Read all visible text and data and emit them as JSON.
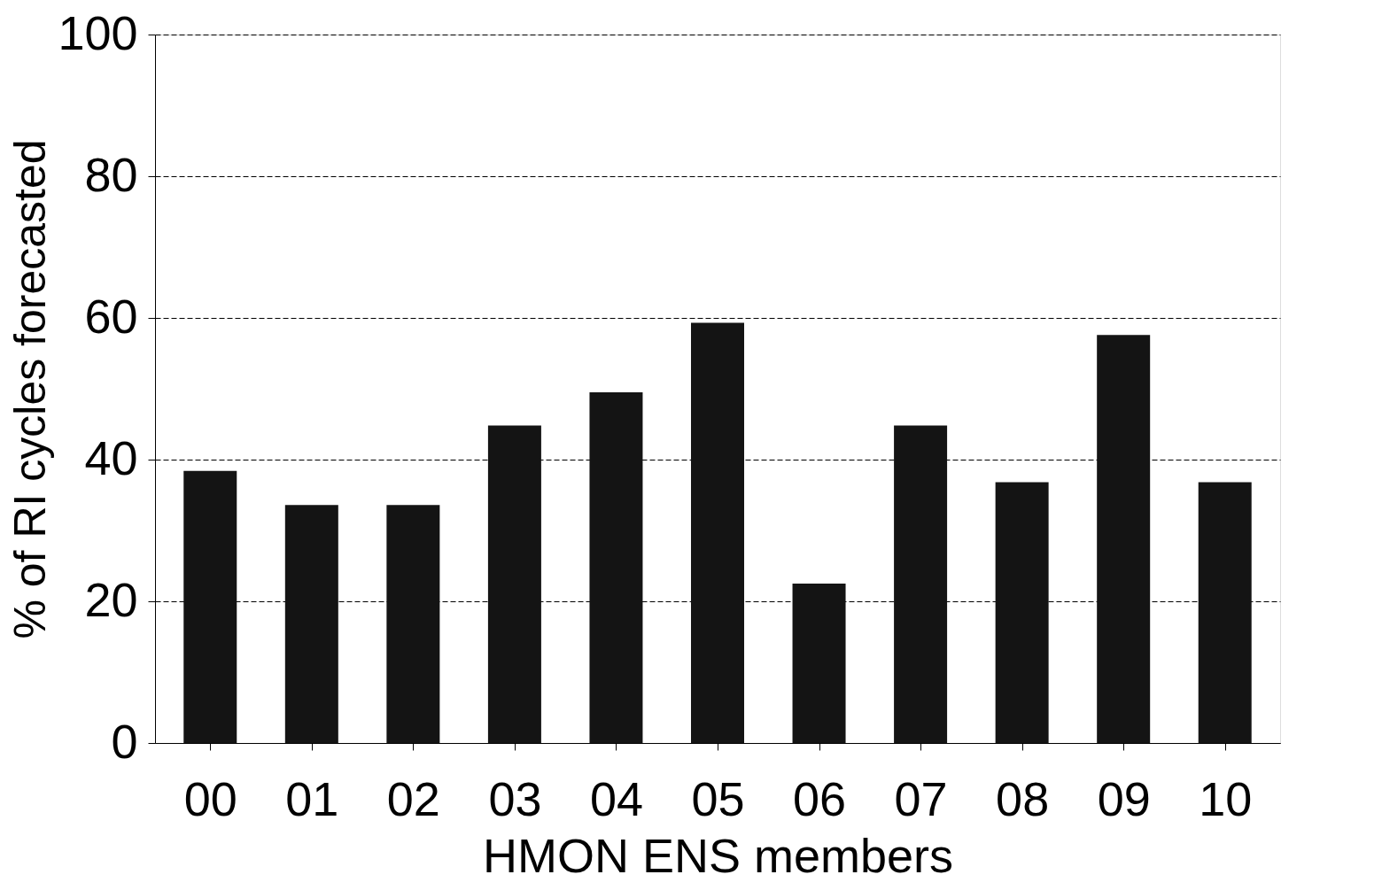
{
  "chart_data": {
    "type": "bar",
    "xlabel": "HMON ENS members",
    "ylabel": "% of RI cycles forecasted",
    "categories": [
      "00",
      "01",
      "02",
      "03",
      "04",
      "05",
      "06",
      "07",
      "08",
      "09",
      "10"
    ],
    "values": [
      38.4,
      33.6,
      33.6,
      44.8,
      49.5,
      59.3,
      22.5,
      44.8,
      36.8,
      57.6,
      36.8
    ],
    "color": "#141414",
    "ylim": [
      0,
      100
    ],
    "yticks": [
      0,
      20,
      40,
      60,
      80,
      100
    ],
    "grid": "y"
  }
}
